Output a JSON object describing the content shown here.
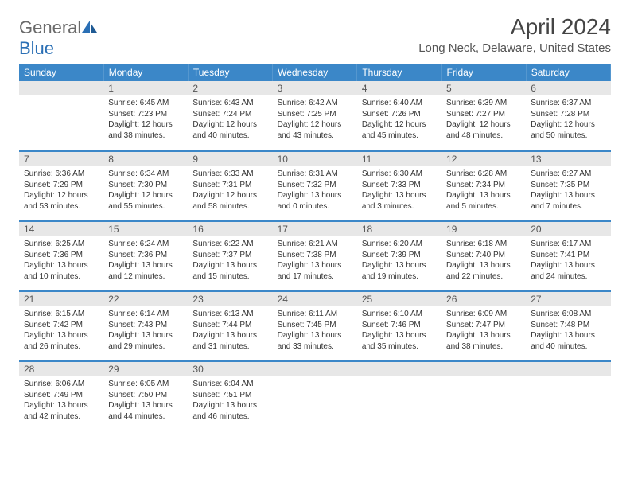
{
  "brand": {
    "word1": "General",
    "word2": "Blue"
  },
  "title": "April 2024",
  "location": "Long Neck, Delaware, United States",
  "colors": {
    "header_bg": "#3b87c8",
    "header_text": "#ffffff",
    "daynum_bg": "#e7e7e7",
    "border": "#3b87c8",
    "logo_gray": "#6a6a6a",
    "logo_blue": "#2a6fb5"
  },
  "weekdays": [
    "Sunday",
    "Monday",
    "Tuesday",
    "Wednesday",
    "Thursday",
    "Friday",
    "Saturday"
  ],
  "layout": {
    "start_weekday_index": 1,
    "days_in_month": 30
  },
  "days": {
    "1": {
      "sunrise": "6:45 AM",
      "sunset": "7:23 PM",
      "daylight": "12 hours and 38 minutes."
    },
    "2": {
      "sunrise": "6:43 AM",
      "sunset": "7:24 PM",
      "daylight": "12 hours and 40 minutes."
    },
    "3": {
      "sunrise": "6:42 AM",
      "sunset": "7:25 PM",
      "daylight": "12 hours and 43 minutes."
    },
    "4": {
      "sunrise": "6:40 AM",
      "sunset": "7:26 PM",
      "daylight": "12 hours and 45 minutes."
    },
    "5": {
      "sunrise": "6:39 AM",
      "sunset": "7:27 PM",
      "daylight": "12 hours and 48 minutes."
    },
    "6": {
      "sunrise": "6:37 AM",
      "sunset": "7:28 PM",
      "daylight": "12 hours and 50 minutes."
    },
    "7": {
      "sunrise": "6:36 AM",
      "sunset": "7:29 PM",
      "daylight": "12 hours and 53 minutes."
    },
    "8": {
      "sunrise": "6:34 AM",
      "sunset": "7:30 PM",
      "daylight": "12 hours and 55 minutes."
    },
    "9": {
      "sunrise": "6:33 AM",
      "sunset": "7:31 PM",
      "daylight": "12 hours and 58 minutes."
    },
    "10": {
      "sunrise": "6:31 AM",
      "sunset": "7:32 PM",
      "daylight": "13 hours and 0 minutes."
    },
    "11": {
      "sunrise": "6:30 AM",
      "sunset": "7:33 PM",
      "daylight": "13 hours and 3 minutes."
    },
    "12": {
      "sunrise": "6:28 AM",
      "sunset": "7:34 PM",
      "daylight": "13 hours and 5 minutes."
    },
    "13": {
      "sunrise": "6:27 AM",
      "sunset": "7:35 PM",
      "daylight": "13 hours and 7 minutes."
    },
    "14": {
      "sunrise": "6:25 AM",
      "sunset": "7:36 PM",
      "daylight": "13 hours and 10 minutes."
    },
    "15": {
      "sunrise": "6:24 AM",
      "sunset": "7:36 PM",
      "daylight": "13 hours and 12 minutes."
    },
    "16": {
      "sunrise": "6:22 AM",
      "sunset": "7:37 PM",
      "daylight": "13 hours and 15 minutes."
    },
    "17": {
      "sunrise": "6:21 AM",
      "sunset": "7:38 PM",
      "daylight": "13 hours and 17 minutes."
    },
    "18": {
      "sunrise": "6:20 AM",
      "sunset": "7:39 PM",
      "daylight": "13 hours and 19 minutes."
    },
    "19": {
      "sunrise": "6:18 AM",
      "sunset": "7:40 PM",
      "daylight": "13 hours and 22 minutes."
    },
    "20": {
      "sunrise": "6:17 AM",
      "sunset": "7:41 PM",
      "daylight": "13 hours and 24 minutes."
    },
    "21": {
      "sunrise": "6:15 AM",
      "sunset": "7:42 PM",
      "daylight": "13 hours and 26 minutes."
    },
    "22": {
      "sunrise": "6:14 AM",
      "sunset": "7:43 PM",
      "daylight": "13 hours and 29 minutes."
    },
    "23": {
      "sunrise": "6:13 AM",
      "sunset": "7:44 PM",
      "daylight": "13 hours and 31 minutes."
    },
    "24": {
      "sunrise": "6:11 AM",
      "sunset": "7:45 PM",
      "daylight": "13 hours and 33 minutes."
    },
    "25": {
      "sunrise": "6:10 AM",
      "sunset": "7:46 PM",
      "daylight": "13 hours and 35 minutes."
    },
    "26": {
      "sunrise": "6:09 AM",
      "sunset": "7:47 PM",
      "daylight": "13 hours and 38 minutes."
    },
    "27": {
      "sunrise": "6:08 AM",
      "sunset": "7:48 PM",
      "daylight": "13 hours and 40 minutes."
    },
    "28": {
      "sunrise": "6:06 AM",
      "sunset": "7:49 PM",
      "daylight": "13 hours and 42 minutes."
    },
    "29": {
      "sunrise": "6:05 AM",
      "sunset": "7:50 PM",
      "daylight": "13 hours and 44 minutes."
    },
    "30": {
      "sunrise": "6:04 AM",
      "sunset": "7:51 PM",
      "daylight": "13 hours and 46 minutes."
    }
  },
  "labels": {
    "sunrise": "Sunrise:",
    "sunset": "Sunset:",
    "daylight": "Daylight:"
  }
}
